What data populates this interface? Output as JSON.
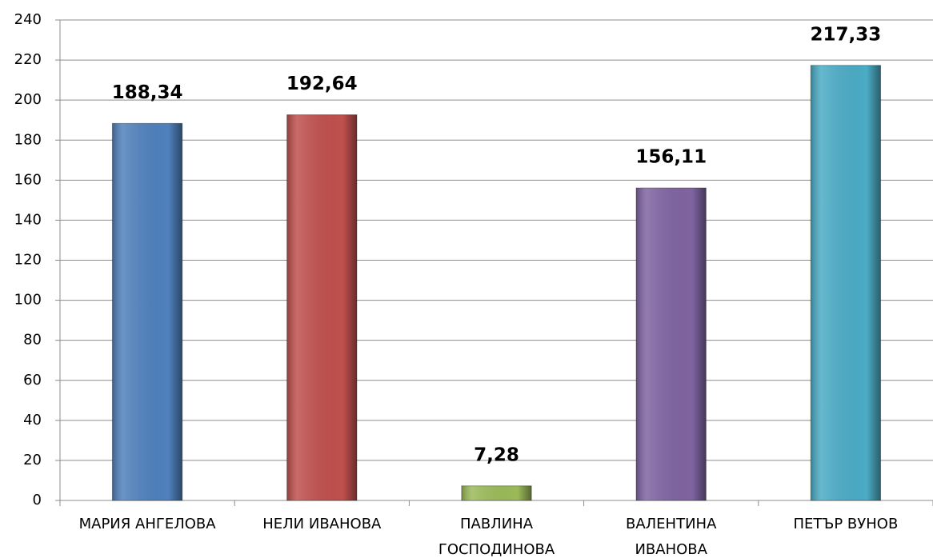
{
  "chart_data": {
    "type": "bar",
    "categories": [
      "МАРИЯ АНГЕЛОВА",
      "НЕЛИ ИВАНОВА",
      "ПАВЛИНА\nГОСПОДИНОВА",
      "ВАЛЕНТИНА\nИВАНОВА",
      "ПЕТЪР ВУНОВ"
    ],
    "values": [
      188.34,
      192.64,
      7.28,
      156.11,
      217.33
    ],
    "value_labels": [
      "188,34",
      "192,64",
      "7,28",
      "156,11",
      "217,33"
    ],
    "colors": [
      "#4f81bd",
      "#c0504d",
      "#9bbb59",
      "#8064a2",
      "#4bacc6"
    ],
    "ylim": [
      0,
      240
    ],
    "yticks": [
      0,
      20,
      40,
      60,
      80,
      100,
      120,
      140,
      160,
      180,
      200,
      220,
      240
    ],
    "grid": true
  }
}
